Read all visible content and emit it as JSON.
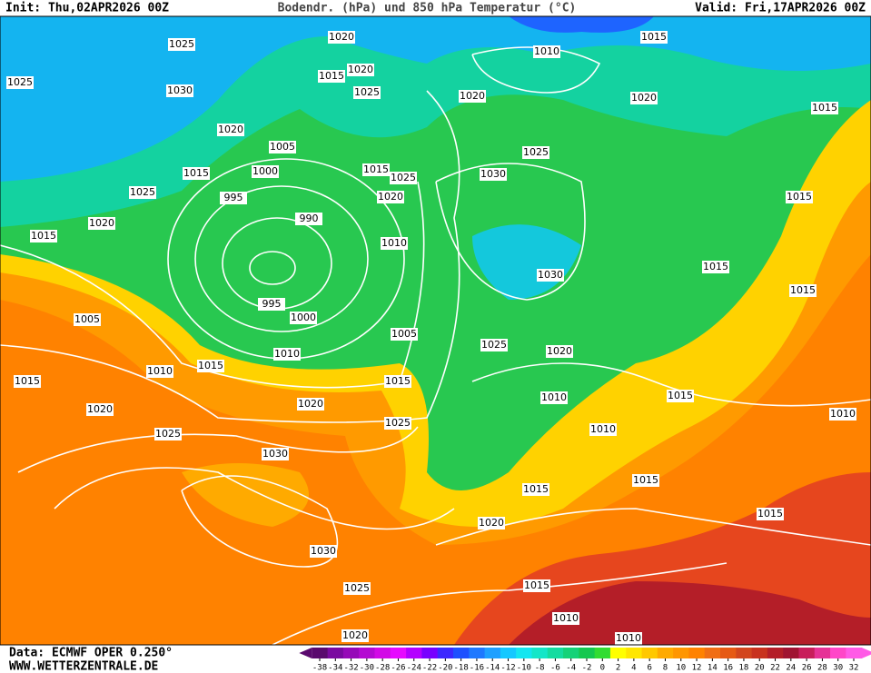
{
  "header": {
    "init": "Init: Thu,02APR2026 00Z",
    "title": "Bodendr. (hPa) und 850 hPa Temperatur (°C)",
    "valid": "Valid: Fri,17APR2026 00Z"
  },
  "footer": {
    "source": "Data: ECMWF OPER 0.250°",
    "site": "WWW.WETTERZENTRALE.DE"
  },
  "colorbar": {
    "ticks": [
      -38,
      -34,
      -32,
      -30,
      -28,
      -26,
      -24,
      -22,
      -20,
      -18,
      -16,
      -14,
      -12,
      -10,
      -8,
      -6,
      -4,
      -2,
      0,
      2,
      4,
      6,
      8,
      10,
      12,
      14,
      16,
      18,
      20,
      22,
      24,
      26,
      28,
      30,
      32
    ],
    "colors": [
      "#5a0a6e",
      "#7a0aa0",
      "#960ab8",
      "#b40ad2",
      "#d20ae6",
      "#e60aff",
      "#b400ff",
      "#7800ff",
      "#3c28ff",
      "#1e50ff",
      "#1e78ff",
      "#1ea0ff",
      "#14c8ff",
      "#14e6f0",
      "#14e6c8",
      "#14dca0",
      "#14d278",
      "#14c850",
      "#32dc32",
      "#ffff00",
      "#ffe600",
      "#ffc800",
      "#ffaa00",
      "#ff9600",
      "#ff8200",
      "#f06e14",
      "#e65a14",
      "#d2461e",
      "#c8321e",
      "#b41e28",
      "#a01432",
      "#c81e5a",
      "#e63296",
      "#ff46c8",
      "#ff5ae6"
    ]
  },
  "isobar_labels": [
    "1015",
    "1010",
    "1020",
    "1025",
    "1020",
    "1015",
    "1025",
    "1030",
    "1025",
    "1020",
    "1020",
    "1015",
    "1020",
    "1005",
    "1025",
    "1000",
    "1015",
    "1015",
    "1025",
    "1030",
    "1025",
    "995",
    "1020",
    "1015",
    "990",
    "1020",
    "1010",
    "1015",
    "1015",
    "1030",
    "995",
    "1015",
    "1000",
    "1005",
    "1005",
    "1025",
    "1020",
    "1010",
    "1015",
    "1010",
    "1015",
    "1015",
    "1010",
    "1015",
    "1020",
    "1020",
    "1025",
    "1010",
    "1025",
    "1030",
    "1015",
    "1015",
    "1020",
    "1015",
    "1030",
    "1025",
    "1015",
    "1010",
    "1010",
    "1020",
    "1010"
  ]
}
